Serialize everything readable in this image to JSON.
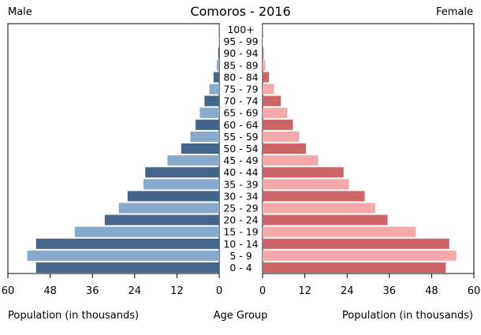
{
  "chart_data": {
    "type": "bar",
    "title": "Comoros - 2016",
    "left_label": "Male",
    "right_label": "Female",
    "xlabel_left": "Population (in thousands)",
    "xlabel_center": "Age Group",
    "xlabel_right": "Population (in thousands)",
    "xlim": [
      0,
      60
    ],
    "xticks": [
      "0",
      "12",
      "24",
      "36",
      "48",
      "60"
    ],
    "xticks_left": [
      "60",
      "48",
      "36",
      "24",
      "12",
      "0"
    ],
    "categories": [
      "0 - 4",
      "5 - 9",
      "10 - 14",
      "15 - 19",
      "20 - 24",
      "25 - 29",
      "30 - 34",
      "35 - 39",
      "40 - 44",
      "45 - 49",
      "50 - 54",
      "55 - 59",
      "60 - 64",
      "65 - 69",
      "70 - 74",
      "75 - 79",
      "80 - 84",
      "85 - 89",
      "90 - 94",
      "95 - 99",
      "100+"
    ],
    "series": [
      {
        "name": "Male",
        "values": [
          52.0,
          54.5,
          52.0,
          41.0,
          32.5,
          28.5,
          26.0,
          21.5,
          21.0,
          14.7,
          10.8,
          8.2,
          6.7,
          5.5,
          4.2,
          2.8,
          1.6,
          0.7,
          0.3,
          0.1,
          0.1
        ],
        "colors": [
          "#44668c",
          "#88aacc"
        ]
      },
      {
        "name": "Female",
        "values": [
          52.0,
          55.0,
          53.0,
          43.5,
          35.5,
          32.0,
          29.0,
          24.5,
          23.0,
          15.8,
          12.3,
          10.4,
          8.6,
          7.0,
          5.2,
          3.2,
          1.8,
          0.8,
          0.3,
          0.1,
          0.1
        ],
        "colors": [
          "#cc6666",
          "#f4aaaa"
        ]
      }
    ],
    "grid": false,
    "legend": "none"
  }
}
